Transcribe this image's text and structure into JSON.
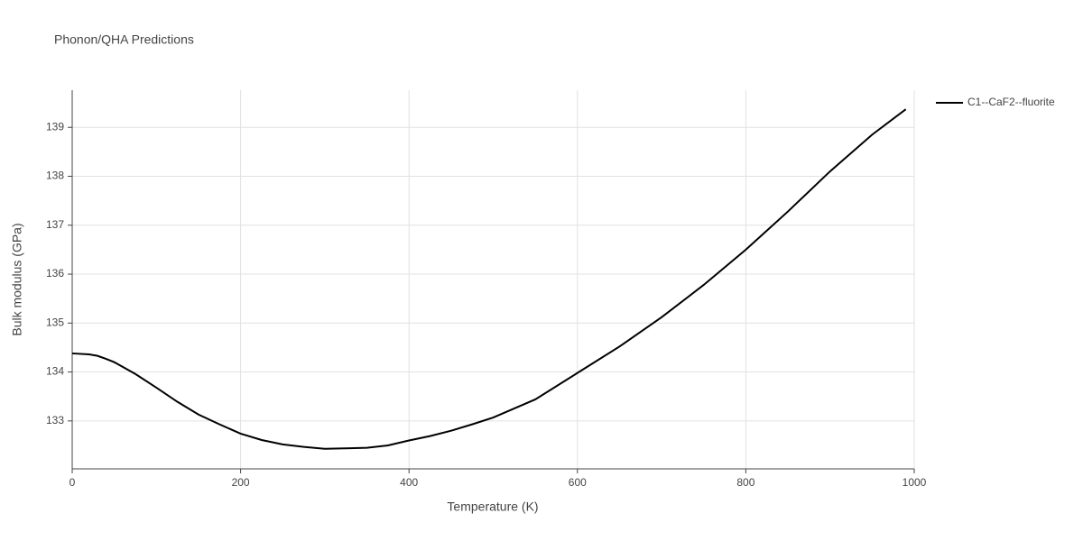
{
  "chart_data": {
    "type": "line",
    "title": "Phonon/QHA Predictions",
    "x_label": "Temperature (K)",
    "y_label": "Bulk modulus (GPa)",
    "x": [
      0,
      20,
      30,
      40,
      50,
      75,
      100,
      125,
      150,
      175,
      200,
      225,
      250,
      275,
      300,
      325,
      350,
      375,
      400,
      425,
      450,
      475,
      500,
      550,
      600,
      650,
      700,
      750,
      800,
      850,
      900,
      950,
      990
    ],
    "series": [
      {
        "name": "C1--CaF2--fluorite",
        "color": "#000000",
        "values": [
          134.38,
          134.36,
          134.33,
          134.27,
          134.2,
          133.96,
          133.68,
          133.39,
          133.13,
          132.93,
          132.74,
          132.61,
          132.52,
          132.47,
          132.43,
          132.44,
          132.45,
          132.5,
          132.6,
          132.69,
          132.8,
          132.93,
          133.07,
          133.44,
          133.98,
          134.52,
          135.12,
          135.78,
          136.5,
          137.28,
          138.1,
          138.85,
          139.37
        ]
      }
    ],
    "xlim": [
      0,
      1000
    ],
    "xticks": [
      0,
      200,
      400,
      600,
      800,
      1000
    ],
    "ylim": [
      132.02,
      139.76
    ],
    "yticks": [
      133,
      134,
      135,
      136,
      137,
      138,
      139
    ],
    "grid": true,
    "legend": "right"
  }
}
